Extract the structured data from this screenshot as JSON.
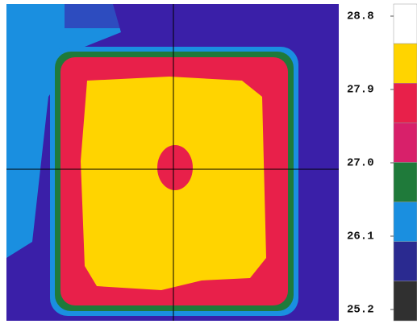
{
  "chart_data": {
    "type": "heatmap",
    "colorbar": {
      "lim": [
        25.2,
        28.8
      ],
      "ticks": [
        28.8,
        27.9,
        {
          "value": 27,
          "label": "27.0"
        },
        26.1,
        25.2
      ],
      "colors": [
        "#ffffff",
        "#ffd400",
        "#e8204a",
        "#d8206a",
        "#1f7a3a",
        "#1a8fe0",
        "#2a2a90",
        "#303030"
      ]
    }
  }
}
